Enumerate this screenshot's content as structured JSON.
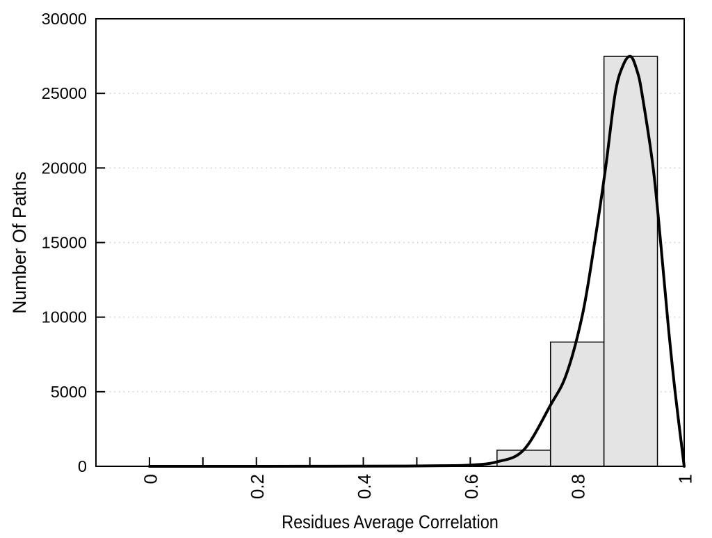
{
  "chart_data": {
    "type": "histogram",
    "title": "",
    "xlabel": "Residues Average Correlation",
    "ylabel": "Number Of Paths",
    "xlim": [
      -0.1,
      1.0
    ],
    "ylim": [
      0,
      30000
    ],
    "x_major_ticks": [
      0,
      0.2,
      0.4,
      0.6,
      0.8,
      1
    ],
    "x_major_tick_labels": [
      "0",
      "0.2",
      "0.4",
      "0.6",
      "0.8",
      "1"
    ],
    "x_minor_tick_step": 0.1,
    "y_ticks": [
      0,
      5000,
      10000,
      15000,
      20000,
      25000,
      30000
    ],
    "y_tick_labels": [
      "0",
      "5000",
      "10000",
      "15000",
      "20000",
      "25000",
      "30000"
    ],
    "grid": "horizontal-dotted",
    "grid_color": "#c8c8c8",
    "bar_fill": "#e4e4e4",
    "bar_stroke": "#000000",
    "bars": [
      {
        "x0": 0.65,
        "x1": 0.75,
        "count": 1080
      },
      {
        "x0": 0.75,
        "x1": 0.85,
        "count": 8330
      },
      {
        "x0": 0.85,
        "x1": 0.95,
        "count": 27480
      }
    ],
    "curve": {
      "name": "density-fit",
      "color": "#000000",
      "x": [
        0.0,
        0.1,
        0.2,
        0.3,
        0.4,
        0.48,
        0.55,
        0.6,
        0.65,
        0.7,
        0.75,
        0.78,
        0.81,
        0.8325,
        0.853,
        0.871,
        0.886,
        0.9,
        0.912,
        0.921,
        0.942,
        0.956,
        0.97,
        0.983,
        1.0
      ],
      "y": [
        0,
        0,
        0,
        5,
        10,
        20,
        40,
        80,
        300,
        1100,
        4100,
        6200,
        10200,
        15000,
        20000,
        25000,
        26900,
        27480,
        26500,
        25000,
        20000,
        15000,
        9500,
        5000,
        0
      ]
    }
  }
}
